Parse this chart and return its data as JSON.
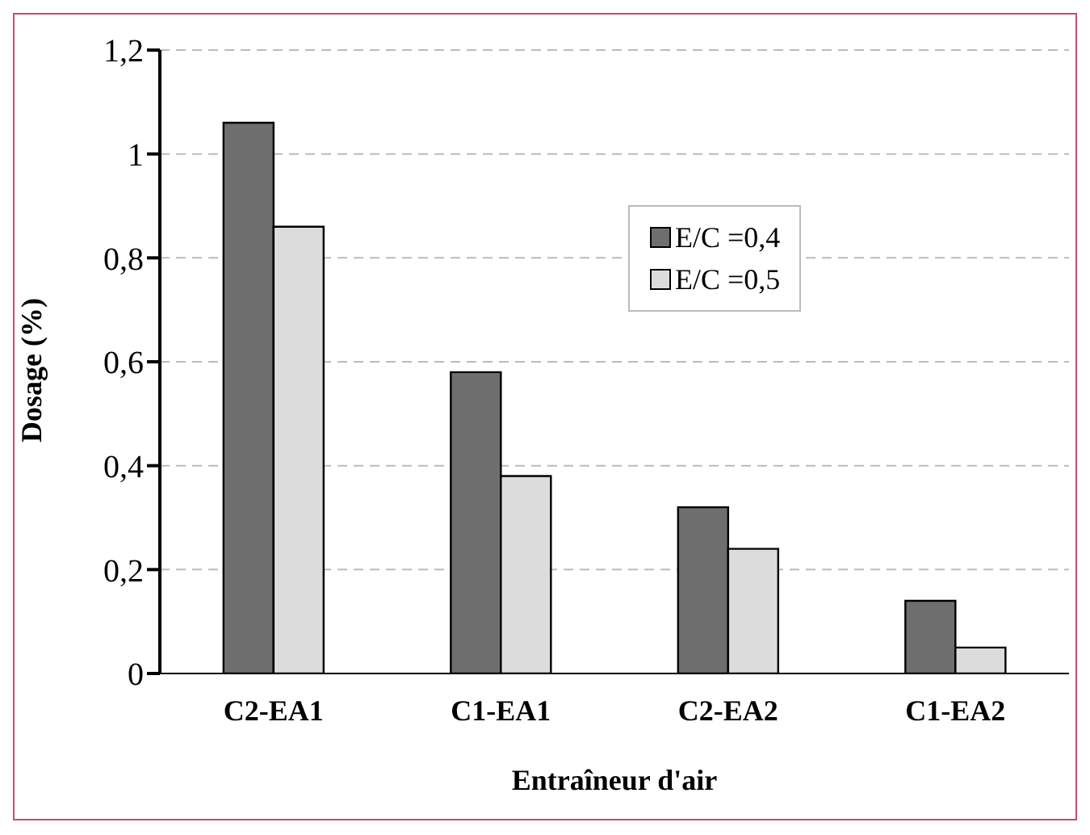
{
  "chart_data": {
    "type": "bar",
    "xlabel": "Entraîneur d'air",
    "ylabel": "Dosage (%)",
    "categories": [
      "C2-EA1",
      "C1-EA1",
      "C2-EA2",
      "C1-EA2"
    ],
    "series": [
      {
        "name": "E/C =0,4",
        "color": "#6e6e6e",
        "values": [
          1.06,
          0.58,
          0.32,
          0.14
        ]
      },
      {
        "name": "E/C =0,5",
        "color": "#dcdcdc",
        "values": [
          0.86,
          0.38,
          0.24,
          0.05
        ]
      }
    ],
    "ylim": [
      0,
      1.2
    ],
    "yticks": [
      0,
      {
        "value": 0.2,
        "label": "0,2"
      },
      {
        "value": 0.4,
        "label": "0,4"
      },
      {
        "value": 0.6,
        "label": "0,6"
      },
      {
        "value": 0.8,
        "label": "0,8"
      },
      1,
      {
        "value": 1.2,
        "label": "1,2"
      }
    ],
    "grid": "y",
    "legend": "top right"
  }
}
